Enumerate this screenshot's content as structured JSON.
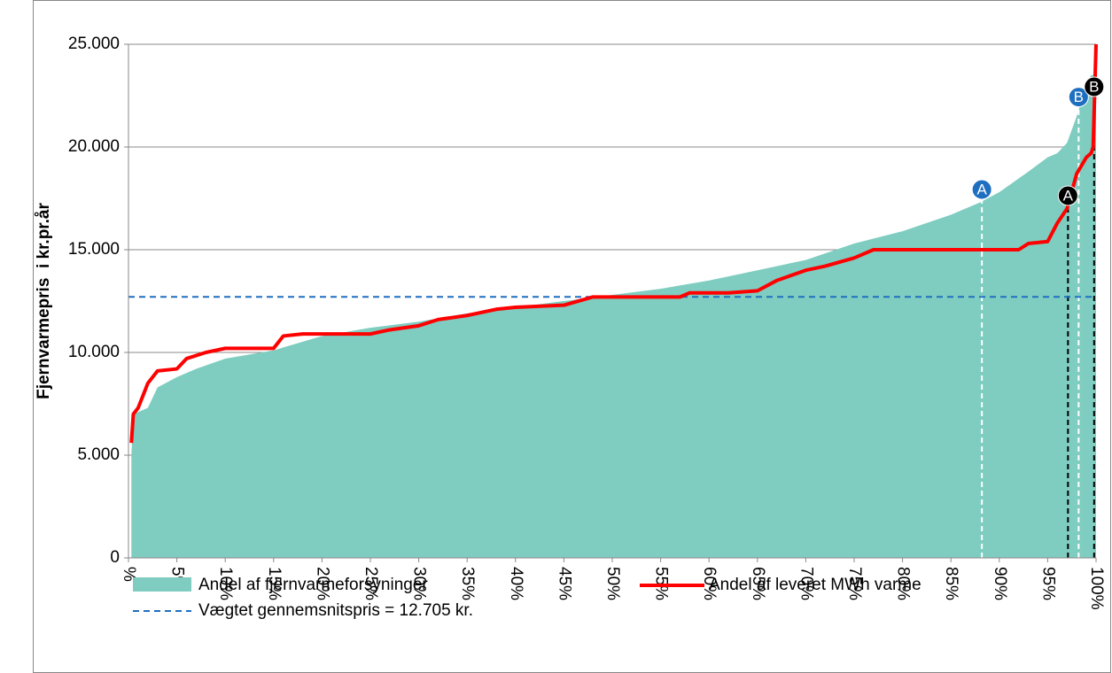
{
  "chart_data": {
    "type": "area",
    "y_label": "Fjernvarmepris  i kr.pr.år",
    "xlim": [
      0,
      100
    ],
    "ylim": [
      0,
      25000
    ],
    "xticks": [
      {
        "value": 0,
        "label": "%"
      },
      {
        "value": 5,
        "label": "5%"
      },
      {
        "value": 10,
        "label": "10%"
      },
      {
        "value": 15,
        "label": "15%"
      },
      {
        "value": 20,
        "label": "20%"
      },
      {
        "value": 25,
        "label": "25%"
      },
      {
        "value": 30,
        "label": "30%"
      },
      {
        "value": 35,
        "label": "35%"
      },
      {
        "value": 40,
        "label": "40%"
      },
      {
        "value": 45,
        "label": "45%"
      },
      {
        "value": 50,
        "label": "50%"
      },
      {
        "value": 55,
        "label": "55%"
      },
      {
        "value": 60,
        "label": "60%"
      },
      {
        "value": 65,
        "label": "65%"
      },
      {
        "value": 70,
        "label": "70%"
      },
      {
        "value": 75,
        "label": "75%"
      },
      {
        "value": 80,
        "label": "80%"
      },
      {
        "value": 85,
        "label": "85%"
      },
      {
        "value": 90,
        "label": "90%"
      },
      {
        "value": 95,
        "label": "95%"
      },
      {
        "value": 100,
        "label": "100%"
      }
    ],
    "yticks": [
      0,
      {
        "value": 5000,
        "label": "5.000"
      },
      {
        "value": 10000,
        "label": "10.000"
      },
      {
        "value": 15000,
        "label": "15.000"
      },
      {
        "value": 20000,
        "label": "20.000"
      },
      {
        "value": 25000,
        "label": "25.000"
      }
    ],
    "grid": true,
    "series": [
      {
        "name": "Andel af fjernvarmeforsyninger",
        "type": "area",
        "color": "#7ecdc0",
        "x": [
          0.3,
          0.5,
          2,
          3,
          5,
          7,
          10,
          15,
          20,
          25,
          30,
          35,
          40,
          45,
          50,
          55,
          60,
          65,
          70,
          75,
          80,
          85,
          88,
          90,
          93,
          95,
          96,
          97,
          98,
          99,
          99.5,
          100
        ],
        "values": [
          5000,
          7000,
          7300,
          8300,
          8800,
          9200,
          9700,
          10100,
          10800,
          11200,
          11500,
          11900,
          12200,
          12500,
          12800,
          13100,
          13500,
          14000,
          14500,
          15300,
          15900,
          16700,
          17300,
          17800,
          18800,
          19500,
          19700,
          20200,
          21500,
          23000,
          23500,
          23500
        ]
      },
      {
        "name": "Andel af leveret MWh varme",
        "type": "line",
        "color": "#ff0000",
        "x": [
          0.3,
          0.5,
          1,
          2,
          3,
          5,
          6,
          8,
          10,
          15,
          16,
          18,
          25,
          27,
          30,
          32,
          35,
          38,
          40,
          45,
          48,
          57,
          58,
          62,
          65,
          67,
          70,
          72,
          75,
          77,
          92,
          93,
          95,
          96,
          97,
          98,
          99,
          99.5,
          99.7,
          100
        ],
        "values": [
          5600,
          7000,
          7300,
          8500,
          9100,
          9200,
          9700,
          10000,
          10200,
          10200,
          10800,
          10900,
          10900,
          11100,
          11300,
          11600,
          11800,
          12100,
          12200,
          12300,
          12700,
          12700,
          12900,
          12900,
          13000,
          13500,
          14000,
          14200,
          14600,
          15000,
          15000,
          15300,
          15400,
          16300,
          17000,
          18700,
          19500,
          19700,
          20000,
          25000
        ]
      }
    ],
    "reference_line": {
      "value": 12705,
      "label": "Vægtet gennemsnitspris = 12.705 kr.",
      "color": "#1f6fc0"
    },
    "markers": [
      {
        "label": "A",
        "x": 88.2,
        "y": 17500,
        "color": "#1f6fc0",
        "line_color": "#ffffff"
      },
      {
        "label": "B",
        "x": 98.2,
        "y": 22000,
        "color": "#1f6fc0",
        "line_color": "#ffffff"
      },
      {
        "label": "A",
        "x": 97.1,
        "y": 17200,
        "color": "#000000",
        "line_color": "#000000"
      },
      {
        "label": "B",
        "x": 99.8,
        "y": 22500,
        "color": "#000000",
        "line_color": "#000000"
      }
    ]
  }
}
